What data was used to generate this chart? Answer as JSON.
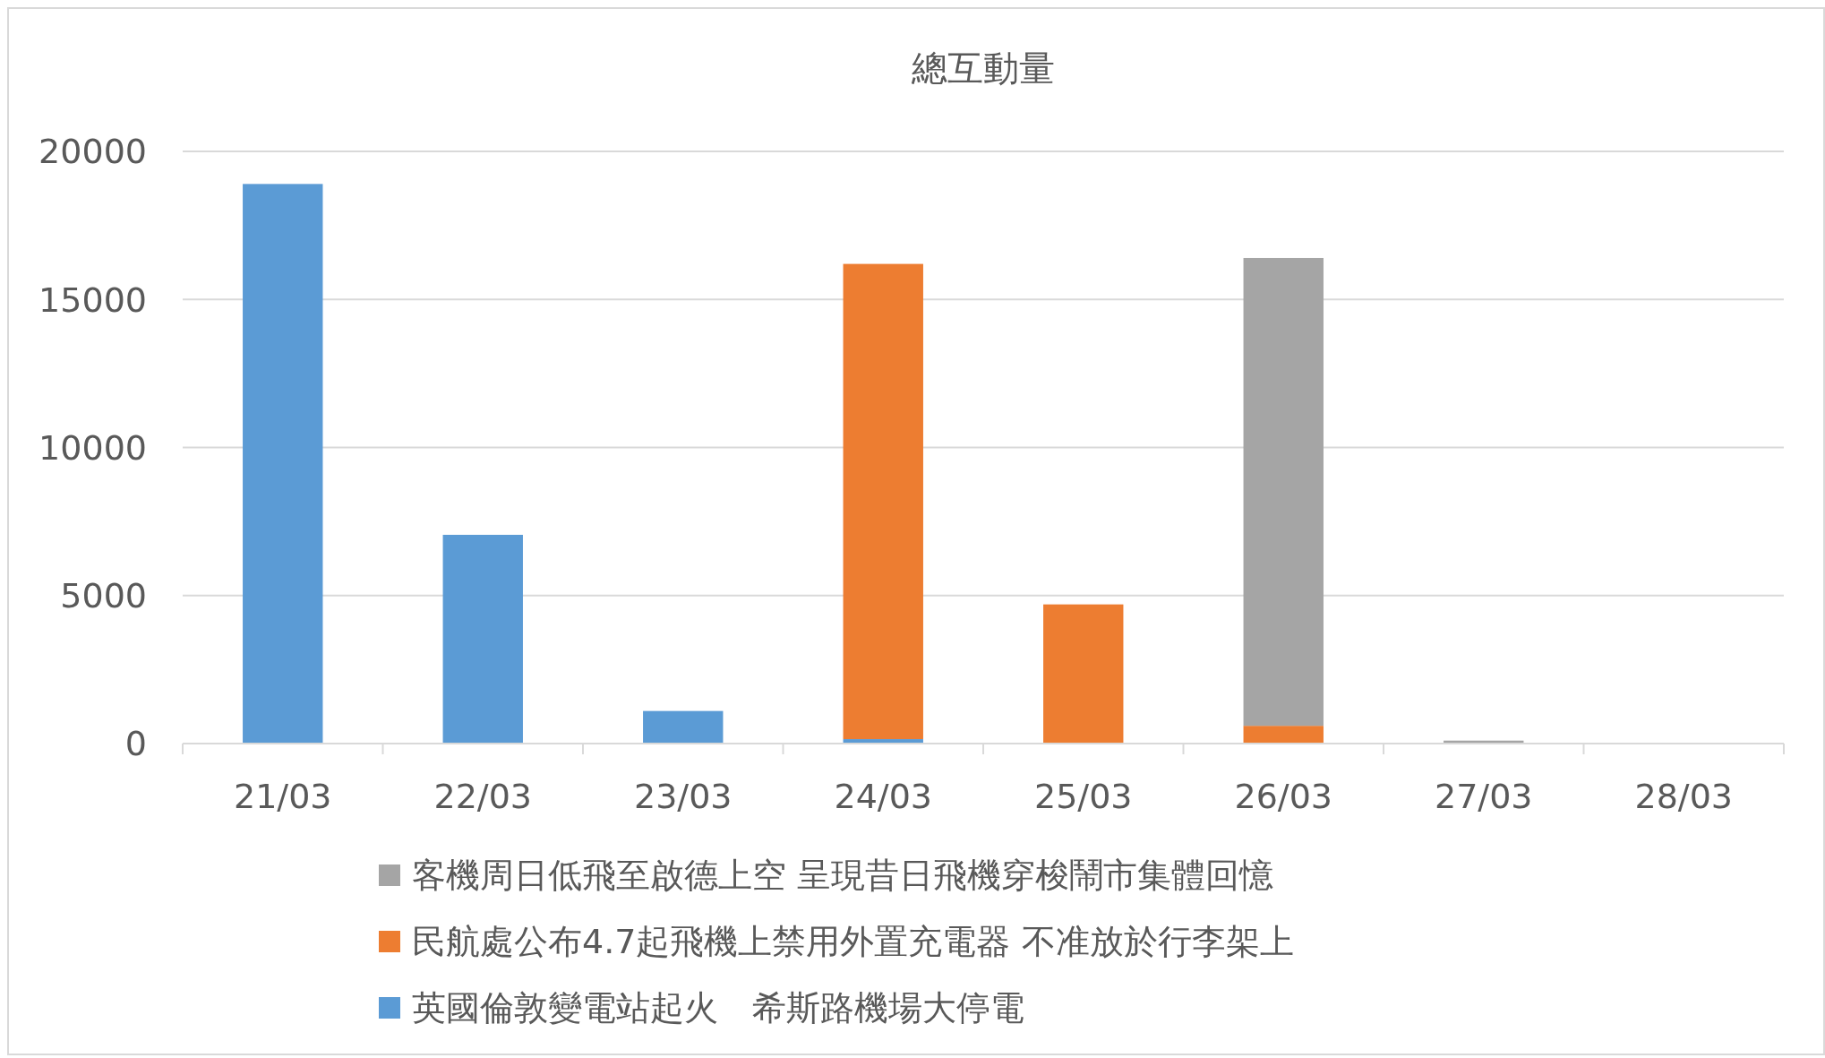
{
  "chart_data": {
    "type": "bar",
    "title": "總互動量",
    "stacked": true,
    "categories": [
      "21/03",
      "22/03",
      "23/03",
      "24/03",
      "25/03",
      "26/03",
      "27/03",
      "28/03"
    ],
    "series": [
      {
        "name": "英國倫敦變電站起火　希斯路機場大停電",
        "color": "#5b9bd5",
        "values": [
          18900,
          7050,
          1100,
          150,
          null,
          null,
          null,
          null
        ]
      },
      {
        "name": "民航處公布4.7起飛機上禁用外置充電器 不准放於行李架上",
        "color": "#ed7d31",
        "values": [
          null,
          null,
          null,
          16050,
          4700,
          600,
          null,
          null
        ]
      },
      {
        "name": "客機周日低飛至啟德上空 呈現昔日飛機穿梭鬧市集體回憶",
        "color": "#a5a5a5",
        "values": [
          null,
          null,
          null,
          null,
          null,
          15800,
          100,
          null
        ]
      }
    ],
    "ylim": [
      0,
      20000
    ],
    "yticks": [
      0,
      5000,
      10000,
      15000,
      20000
    ],
    "grid": "y",
    "legend": "bottom"
  }
}
